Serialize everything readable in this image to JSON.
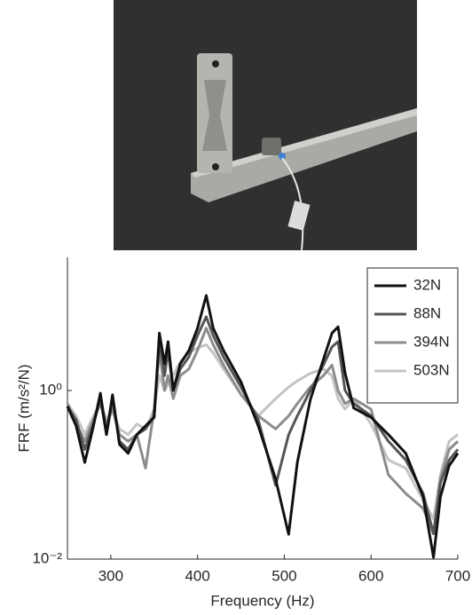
{
  "chart_data": {
    "type": "line",
    "xlabel": "Frequency (Hz)",
    "ylabel": "FRF (m/s²/N)",
    "x": [
      250,
      260,
      270,
      280,
      288,
      295,
      302,
      310,
      320,
      330,
      340,
      350,
      356,
      362,
      366,
      372,
      380,
      390,
      400,
      410,
      418,
      430,
      450,
      470,
      490,
      505,
      515,
      530,
      545,
      555,
      562,
      570,
      580,
      600,
      620,
      640,
      660,
      672,
      680,
      690,
      700
    ],
    "series": [
      {
        "name": "32N",
        "color": "#111111",
        "values": [
          0.65,
          0.38,
          0.14,
          0.38,
          0.93,
          0.3,
          0.89,
          0.23,
          0.18,
          0.3,
          0.38,
          0.48,
          4.8,
          2.07,
          3.8,
          1.0,
          2.07,
          2.98,
          5.5,
          13.4,
          5.5,
          2.98,
          1.27,
          0.38,
          0.089,
          0.0197,
          0.14,
          0.78,
          2.33,
          4.8,
          5.7,
          1.62,
          0.62,
          0.48,
          0.3,
          0.18,
          0.055,
          0.0105,
          0.055,
          0.128,
          0.18
        ]
      },
      {
        "name": "88N",
        "color": "#555555",
        "values": [
          0.65,
          0.45,
          0.2,
          0.4,
          0.8,
          0.3,
          0.8,
          0.25,
          0.2,
          0.3,
          0.35,
          0.5,
          4.0,
          1.5,
          3.0,
          1.0,
          1.8,
          2.5,
          4.5,
          7.5,
          4.5,
          2.5,
          1.1,
          0.45,
          0.075,
          0.3,
          0.5,
          1.0,
          2.0,
          3.3,
          3.8,
          1.0,
          0.7,
          0.5,
          0.25,
          0.15,
          0.06,
          0.02,
          0.08,
          0.15,
          0.2
        ]
      },
      {
        "name": "394N",
        "color": "#8c8c8c",
        "values": [
          0.7,
          0.4,
          0.25,
          0.45,
          0.7,
          0.4,
          0.6,
          0.3,
          0.25,
          0.3,
          0.12,
          0.6,
          3.0,
          1.0,
          1.5,
          0.8,
          1.5,
          1.8,
          3.0,
          5.5,
          3.5,
          2.0,
          0.9,
          0.5,
          0.35,
          0.5,
          0.7,
          1.1,
          1.5,
          2.0,
          1.0,
          0.7,
          0.8,
          0.6,
          0.1,
          0.06,
          0.04,
          0.02,
          0.09,
          0.2,
          0.25
        ]
      },
      {
        "name": "503N",
        "color": "#c4c4c4",
        "values": [
          0.7,
          0.5,
          0.3,
          0.5,
          0.7,
          0.45,
          0.6,
          0.35,
          0.3,
          0.4,
          0.35,
          0.6,
          1.5,
          1.0,
          1.2,
          1.5,
          2.2,
          2.8,
          3.2,
          3.5,
          2.8,
          1.8,
          0.9,
          0.5,
          0.8,
          1.1,
          1.3,
          1.6,
          1.8,
          1.5,
          0.8,
          0.6,
          0.8,
          0.4,
          0.15,
          0.12,
          0.05,
          0.03,
          0.1,
          0.25,
          0.3
        ]
      }
    ],
    "xlim": [
      250,
      700
    ],
    "ylim": [
      0.01,
      38
    ],
    "xticks": [
      300,
      400,
      500,
      600,
      700
    ],
    "yticks": [
      {
        "value": 0.01,
        "label": "10⁻²"
      },
      {
        "value": 1,
        "label": "10⁰"
      }
    ],
    "log_y": true,
    "legend": "upper right"
  }
}
